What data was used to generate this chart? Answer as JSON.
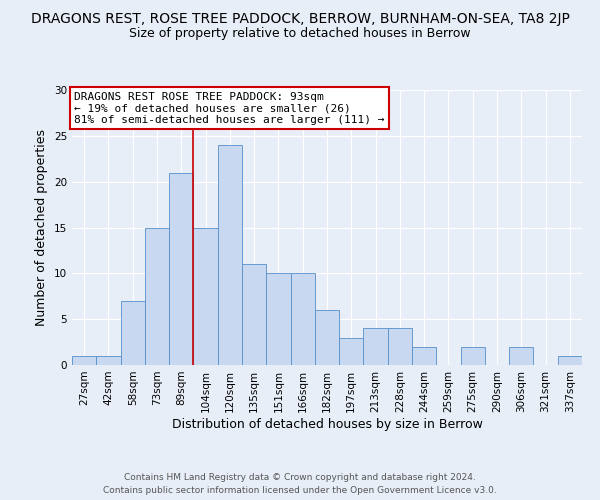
{
  "title_line1": "DRAGONS REST, ROSE TREE PADDOCK, BERROW, BURNHAM-ON-SEA, TA8 2JP",
  "title_line2": "Size of property relative to detached houses in Berrow",
  "xlabel": "Distribution of detached houses by size in Berrow",
  "ylabel": "Number of detached properties",
  "bar_labels": [
    "27sqm",
    "42sqm",
    "58sqm",
    "73sqm",
    "89sqm",
    "104sqm",
    "120sqm",
    "135sqm",
    "151sqm",
    "166sqm",
    "182sqm",
    "197sqm",
    "213sqm",
    "228sqm",
    "244sqm",
    "259sqm",
    "275sqm",
    "290sqm",
    "306sqm",
    "321sqm",
    "337sqm"
  ],
  "bar_values": [
    1,
    1,
    7,
    15,
    21,
    15,
    24,
    11,
    10,
    10,
    6,
    3,
    4,
    4,
    2,
    0,
    2,
    0,
    2,
    0,
    1
  ],
  "bar_color": "#c8d8f0",
  "bar_edge_color": "#5590c8",
  "vline_x": 4.5,
  "vline_color": "#cc0000",
  "ylim": [
    0,
    30
  ],
  "yticks": [
    0,
    5,
    10,
    15,
    20,
    25,
    30
  ],
  "annotation_title": "DRAGONS REST ROSE TREE PADDOCK: 93sqm",
  "annotation_line2": "← 19% of detached houses are smaller (26)",
  "annotation_line3": "81% of semi-detached houses are larger (111) →",
  "annotation_box_color": "#ffffff",
  "annotation_box_edge": "#cc0000",
  "footer_line1": "Contains HM Land Registry data © Crown copyright and database right 2024.",
  "footer_line2": "Contains public sector information licensed under the Open Government Licence v3.0.",
  "background_color": "#e8eef8",
  "grid_color": "#ffffff",
  "title_fontsize": 10,
  "subtitle_fontsize": 9,
  "axis_label_fontsize": 9,
  "tick_fontsize": 7.5,
  "annotation_fontsize": 8,
  "footer_fontsize": 6.5
}
